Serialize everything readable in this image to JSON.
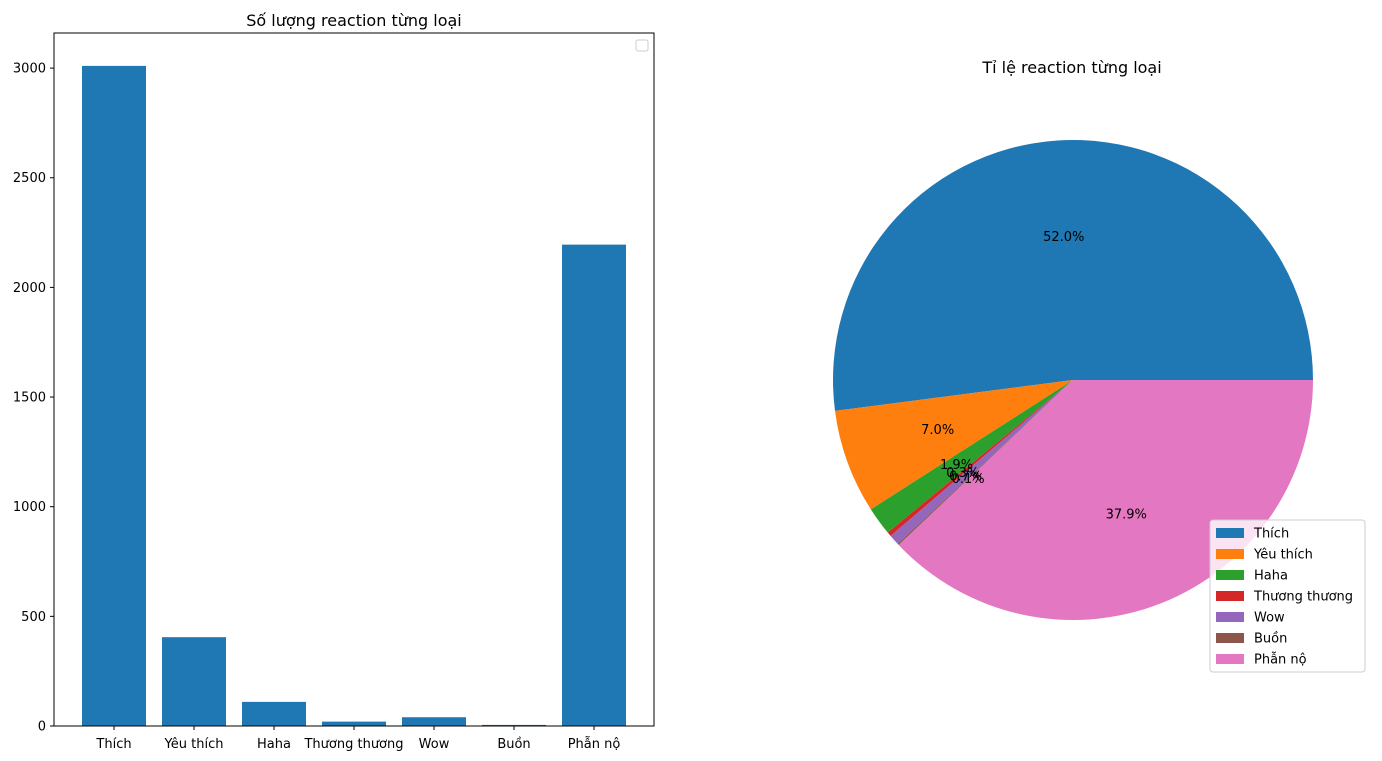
{
  "chart_data": [
    {
      "type": "bar",
      "title": "Số lượng reaction từng loại",
      "categories": [
        "Thích",
        "Yêu thích",
        "Haha",
        "Thương thương",
        "Wow",
        "Buồn",
        "Phẫn nộ"
      ],
      "values": [
        3010,
        405,
        110,
        20,
        40,
        5,
        2195
      ],
      "ylim": [
        0,
        3160
      ],
      "yticks": [
        "0",
        "500",
        "1000",
        "1500",
        "2000",
        "2500",
        "3000"
      ],
      "bar_color": "#1f77b4",
      "grid": false,
      "legend": "top-right, empty"
    },
    {
      "type": "pie",
      "title": "Tỉ lệ reaction từng loại",
      "labels": [
        "Thích",
        "Yêu thích",
        "Haha",
        "Thương thương",
        "Wow",
        "Buồn",
        "Phẫn nộ"
      ],
      "values": [
        52.0,
        7.0,
        1.9,
        0.3,
        0.7,
        0.1,
        37.9
      ],
      "pct_labels": [
        "52.0%",
        "7.0%",
        "1.9%",
        "0.3%",
        "0.7%",
        "0.1%",
        "37.9%"
      ],
      "colors": [
        "#1f77b4",
        "#ff7f0e",
        "#2ca02c",
        "#d62728",
        "#9467bd",
        "#8c564b",
        "#e377c2"
      ],
      "legend": "lower-right"
    }
  ]
}
